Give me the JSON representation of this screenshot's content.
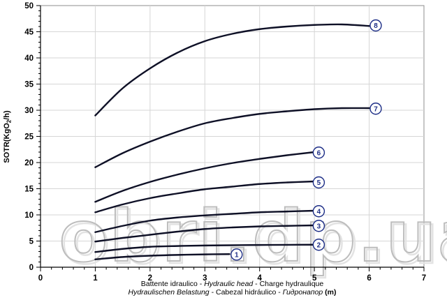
{
  "chart_data": {
    "type": "line",
    "title": "",
    "ylabel_segments": [
      {
        "t": "SOTR(KgO",
        "sub": false
      },
      {
        "t": "2",
        "sub": true
      },
      {
        "t": "/h)",
        "sub": false
      }
    ],
    "xlabel_line1": [
      {
        "t": "Battente idraulico - ",
        "i": false
      },
      {
        "t": "Hydraulic head",
        "i": true
      },
      {
        "t": " - Charge hydraulique",
        "i": false
      }
    ],
    "xlabel_line2": [
      {
        "t": "Hydraulischen Belastung",
        "i": true
      },
      {
        "t": " - Cabezal hidráulico - ",
        "i": false
      },
      {
        "t": "Гидронапор",
        "i": true
      },
      {
        "t": " ",
        "i": false
      },
      {
        "t": "(m)",
        "i": false,
        "b": true
      }
    ],
    "xlim": [
      0,
      7
    ],
    "ylim": [
      0,
      50
    ],
    "x_major_ticks": [
      0,
      1,
      2,
      3,
      4,
      5,
      6,
      7
    ],
    "y_major_ticks": [
      0,
      5,
      10,
      15,
      20,
      25,
      30,
      35,
      40,
      45,
      50
    ],
    "x_minor_step": 0.2,
    "y_minor_step": 1,
    "grid": true,
    "legend_position": "none",
    "watermark": "obri.dp.ua",
    "series": [
      {
        "name": "1",
        "label": "1",
        "label_pos": [
          3.58,
          2.42
        ],
        "points": [
          [
            1,
            1.5
          ],
          [
            1.5,
            1.95
          ],
          [
            2,
            2.2
          ],
          [
            2.5,
            2.35
          ],
          [
            3,
            2.45
          ],
          [
            3.45,
            2.5
          ]
        ]
      },
      {
        "name": "2",
        "label": "2",
        "label_pos": [
          5.08,
          4.3
        ],
        "points": [
          [
            1,
            2.9
          ],
          [
            1.5,
            3.5
          ],
          [
            2,
            3.9
          ],
          [
            2.5,
            4.05
          ],
          [
            3,
            4.15
          ],
          [
            3.5,
            4.2
          ],
          [
            4,
            4.25
          ],
          [
            4.5,
            4.28
          ],
          [
            5,
            4.3
          ]
        ]
      },
      {
        "name": "3",
        "label": "3",
        "label_pos": [
          5.08,
          7.9
        ],
        "points": [
          [
            1,
            4.9
          ],
          [
            1.5,
            5.6
          ],
          [
            2,
            6.2
          ],
          [
            2.5,
            6.8
          ],
          [
            3,
            7.3
          ],
          [
            3.5,
            7.6
          ],
          [
            4,
            7.8
          ],
          [
            4.5,
            7.9
          ],
          [
            5,
            8.0
          ]
        ]
      },
      {
        "name": "4",
        "label": "4",
        "label_pos": [
          5.08,
          10.7
        ],
        "points": [
          [
            1,
            6.7
          ],
          [
            1.5,
            7.9
          ],
          [
            2,
            8.9
          ],
          [
            2.5,
            9.5
          ],
          [
            3,
            9.9
          ],
          [
            3.5,
            10.2
          ],
          [
            4,
            10.5
          ],
          [
            4.5,
            10.65
          ],
          [
            5,
            10.8
          ]
        ]
      },
      {
        "name": "5",
        "label": "5",
        "label_pos": [
          5.08,
          16.2
        ],
        "points": [
          [
            1,
            10.5
          ],
          [
            1.5,
            12.0
          ],
          [
            2,
            13.2
          ],
          [
            2.5,
            14.1
          ],
          [
            3,
            14.9
          ],
          [
            3.5,
            15.4
          ],
          [
            4,
            15.9
          ],
          [
            4.5,
            16.2
          ],
          [
            5,
            16.4
          ]
        ]
      },
      {
        "name": "6",
        "label": "6",
        "label_pos": [
          5.08,
          21.9
        ],
        "points": [
          [
            1,
            12.5
          ],
          [
            1.5,
            14.6
          ],
          [
            2,
            16.3
          ],
          [
            2.5,
            17.7
          ],
          [
            3,
            18.9
          ],
          [
            3.5,
            19.9
          ],
          [
            4,
            20.7
          ],
          [
            4.5,
            21.4
          ],
          [
            5,
            22.0
          ]
        ]
      },
      {
        "name": "7",
        "label": "7",
        "label_pos": [
          6.12,
          30.3
        ],
        "points": [
          [
            1,
            19.1
          ],
          [
            1.5,
            21.8
          ],
          [
            2,
            24.0
          ],
          [
            2.5,
            25.9
          ],
          [
            3,
            27.5
          ],
          [
            3.5,
            28.5
          ],
          [
            4,
            29.3
          ],
          [
            4.5,
            29.8
          ],
          [
            5,
            30.2
          ],
          [
            5.5,
            30.4
          ],
          [
            6,
            30.4
          ]
        ]
      },
      {
        "name": "8",
        "label": "8",
        "label_pos": [
          6.12,
          46.2
        ],
        "points": [
          [
            1,
            29.0
          ],
          [
            1.5,
            34.2
          ],
          [
            2,
            38.0
          ],
          [
            2.5,
            41.0
          ],
          [
            3,
            43.2
          ],
          [
            3.5,
            44.6
          ],
          [
            4,
            45.5
          ],
          [
            4.5,
            46.0
          ],
          [
            5,
            46.3
          ],
          [
            5.5,
            46.4
          ],
          [
            6,
            46.1
          ]
        ]
      }
    ],
    "colors": {
      "curve": "#0e1026",
      "circle_stroke": "#1c2d86",
      "circle_fill": "#ffffff",
      "grid": "#d6d6d6",
      "axis": "#000000",
      "border": "#8c8c8c",
      "watermark_outline": "#bdbdbd",
      "watermark_shadow": "#e3e3e3",
      "background": "#ffffff"
    }
  }
}
